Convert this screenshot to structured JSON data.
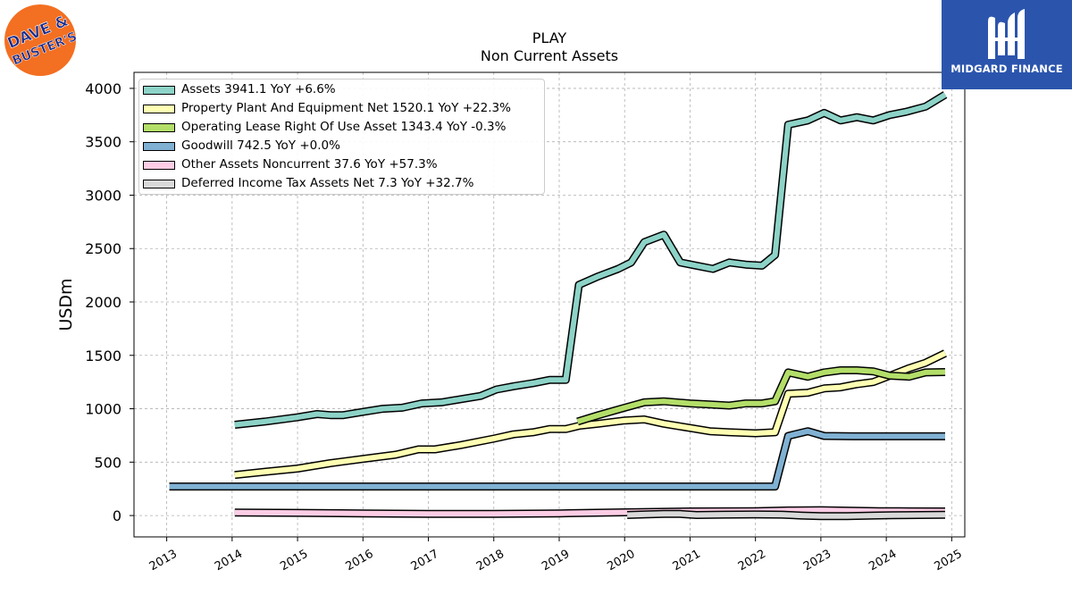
{
  "logos": {
    "left_text_top": "DAVE &",
    "left_text_bottom": "BUSTER'S",
    "right_brand": "MIDGARD FINANCE",
    "left_color": "#f36f21",
    "right_color": "#2b55ad"
  },
  "chart_data": {
    "type": "line",
    "title": "PLAY",
    "subtitle": "Non Current  Assets",
    "ylabel": "USDm",
    "xlabel": "",
    "xlim": [
      2012.5,
      2025.2
    ],
    "ylim": [
      -200,
      4150
    ],
    "x_ticks": [
      2013,
      2014,
      2015,
      2016,
      2017,
      2018,
      2019,
      2020,
      2021,
      2022,
      2023,
      2024,
      2025
    ],
    "y_ticks": [
      0,
      500,
      1000,
      1500,
      2000,
      2500,
      3000,
      3500,
      4000
    ],
    "grid": true,
    "legend_position": "top-left",
    "series": [
      {
        "name": "Assets",
        "legend": "Assets  3941.1 YoY +6.6%",
        "color": "#8dd3c7",
        "points": [
          [
            2014.04,
            850
          ],
          [
            2014.5,
            880
          ],
          [
            2015.0,
            920
          ],
          [
            2015.3,
            950
          ],
          [
            2015.5,
            940
          ],
          [
            2015.7,
            940
          ],
          [
            2016.0,
            970
          ],
          [
            2016.3,
            1000
          ],
          [
            2016.6,
            1010
          ],
          [
            2016.9,
            1050
          ],
          [
            2017.2,
            1060
          ],
          [
            2017.5,
            1090
          ],
          [
            2017.8,
            1120
          ],
          [
            2018.04,
            1180
          ],
          [
            2018.3,
            1210
          ],
          [
            2018.6,
            1240
          ],
          [
            2018.85,
            1270
          ],
          [
            2019.1,
            1270
          ],
          [
            2019.3,
            2160
          ],
          [
            2019.6,
            2240
          ],
          [
            2019.9,
            2310
          ],
          [
            2020.1,
            2370
          ],
          [
            2020.3,
            2560
          ],
          [
            2020.6,
            2630
          ],
          [
            2020.85,
            2370
          ],
          [
            2021.1,
            2340
          ],
          [
            2021.35,
            2310
          ],
          [
            2021.6,
            2370
          ],
          [
            2021.85,
            2350
          ],
          [
            2022.1,
            2340
          ],
          [
            2022.3,
            2440
          ],
          [
            2022.5,
            3660
          ],
          [
            2022.8,
            3700
          ],
          [
            2023.05,
            3770
          ],
          [
            2023.3,
            3700
          ],
          [
            2023.55,
            3730
          ],
          [
            2023.8,
            3700
          ],
          [
            2024.05,
            3750
          ],
          [
            2024.3,
            3780
          ],
          [
            2024.6,
            3830
          ],
          [
            2024.9,
            3941
          ]
        ]
      },
      {
        "name": "Property Plant And Equipment Net",
        "legend": "Property Plant And Equipment Net  1520.1 YoY +22.3%",
        "color": "#ffffb3",
        "points": [
          [
            2014.04,
            380
          ],
          [
            2014.5,
            410
          ],
          [
            2015.0,
            440
          ],
          [
            2015.5,
            490
          ],
          [
            2016.0,
            530
          ],
          [
            2016.5,
            570
          ],
          [
            2016.85,
            620
          ],
          [
            2017.1,
            620
          ],
          [
            2017.5,
            660
          ],
          [
            2018.0,
            720
          ],
          [
            2018.3,
            760
          ],
          [
            2018.6,
            780
          ],
          [
            2018.85,
            810
          ],
          [
            2019.1,
            810
          ],
          [
            2019.3,
            840
          ],
          [
            2019.6,
            860
          ],
          [
            2020.0,
            890
          ],
          [
            2020.3,
            900
          ],
          [
            2020.6,
            860
          ],
          [
            2021.0,
            820
          ],
          [
            2021.3,
            790
          ],
          [
            2021.6,
            780
          ],
          [
            2022.0,
            770
          ],
          [
            2022.3,
            780
          ],
          [
            2022.5,
            1140
          ],
          [
            2022.8,
            1150
          ],
          [
            2023.05,
            1190
          ],
          [
            2023.3,
            1200
          ],
          [
            2023.55,
            1230
          ],
          [
            2023.8,
            1250
          ],
          [
            2024.1,
            1320
          ],
          [
            2024.35,
            1380
          ],
          [
            2024.6,
            1430
          ],
          [
            2024.9,
            1520
          ]
        ]
      },
      {
        "name": "Operating Lease Right Of Use Asset",
        "legend": "Operating Lease Right Of Use Asset  1343.4 YoY -0.3%",
        "color": "#b3de69",
        "points": [
          [
            2019.28,
            880
          ],
          [
            2019.6,
            940
          ],
          [
            2020.0,
            1010
          ],
          [
            2020.3,
            1060
          ],
          [
            2020.6,
            1070
          ],
          [
            2021.0,
            1050
          ],
          [
            2021.3,
            1040
          ],
          [
            2021.6,
            1030
          ],
          [
            2021.85,
            1050
          ],
          [
            2022.1,
            1050
          ],
          [
            2022.3,
            1070
          ],
          [
            2022.5,
            1340
          ],
          [
            2022.8,
            1300
          ],
          [
            2023.05,
            1340
          ],
          [
            2023.3,
            1360
          ],
          [
            2023.55,
            1360
          ],
          [
            2023.8,
            1350
          ],
          [
            2024.05,
            1310
          ],
          [
            2024.35,
            1300
          ],
          [
            2024.6,
            1340
          ],
          [
            2024.9,
            1343
          ]
        ]
      },
      {
        "name": "Goodwill",
        "legend": "Goodwill  742.5 YoY +0.0%",
        "color": "#80b1d3",
        "points": [
          [
            2013.04,
            272
          ],
          [
            2014.0,
            272
          ],
          [
            2015.0,
            272
          ],
          [
            2016.0,
            272
          ],
          [
            2017.0,
            272
          ],
          [
            2018.0,
            272
          ],
          [
            2019.0,
            272
          ],
          [
            2020.0,
            272
          ],
          [
            2021.0,
            272
          ],
          [
            2022.0,
            272
          ],
          [
            2022.3,
            272
          ],
          [
            2022.5,
            745
          ],
          [
            2022.8,
            790
          ],
          [
            2023.05,
            745
          ],
          [
            2023.5,
            742
          ],
          [
            2024.0,
            742
          ],
          [
            2024.9,
            742
          ]
        ]
      },
      {
        "name": "Other Assets Noncurrent",
        "legend": "Other Assets Noncurrent  37.6 YoY +57.3%",
        "color": "#fccde5",
        "points": [
          [
            2014.04,
            28
          ],
          [
            2015.0,
            25
          ],
          [
            2016.0,
            20
          ],
          [
            2017.0,
            15
          ],
          [
            2018.0,
            15
          ],
          [
            2019.0,
            20
          ],
          [
            2020.0,
            30
          ],
          [
            2021.0,
            38
          ],
          [
            2022.0,
            40
          ],
          [
            2022.5,
            48
          ],
          [
            2023.0,
            50
          ],
          [
            2023.5,
            45
          ],
          [
            2023.9,
            40
          ],
          [
            2024.2,
            40
          ],
          [
            2024.9,
            38
          ]
        ]
      },
      {
        "name": "Deferred Income Tax Assets Net",
        "legend": "Deferred Income Tax Assets Net  7.3 YoY +32.7%",
        "color": "#d9d9d9",
        "points": [
          [
            2020.04,
            5
          ],
          [
            2020.3,
            10
          ],
          [
            2020.6,
            15
          ],
          [
            2020.85,
            15
          ],
          [
            2021.1,
            5
          ],
          [
            2021.5,
            8
          ],
          [
            2022.0,
            10
          ],
          [
            2022.4,
            8
          ],
          [
            2022.7,
            0
          ],
          [
            2023.0,
            -5
          ],
          [
            2023.4,
            -5
          ],
          [
            2023.8,
            0
          ],
          [
            2024.1,
            3
          ],
          [
            2024.5,
            5
          ],
          [
            2024.9,
            7
          ]
        ]
      }
    ]
  }
}
